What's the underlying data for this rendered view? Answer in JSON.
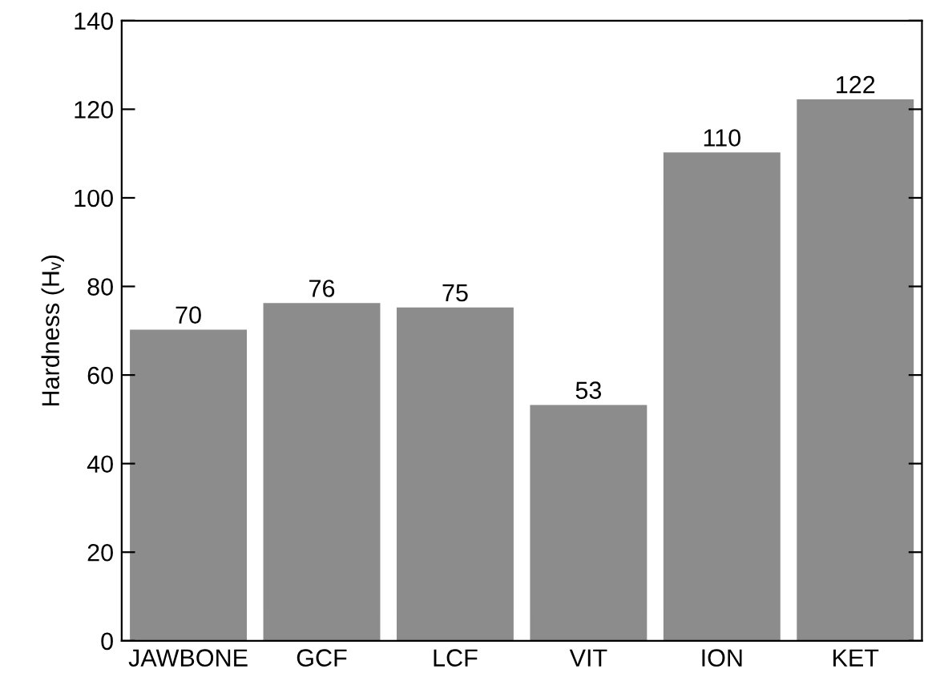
{
  "chart_data": {
    "type": "bar",
    "ylabel": "Hardness (Hᵥ)",
    "categories": [
      "JAWBONE",
      "GCF",
      "LCF",
      "VIT",
      "ION",
      "KET"
    ],
    "values": [
      70,
      76,
      75,
      53,
      110,
      122
    ],
    "color": "#8c8c8c",
    "ylim": [
      0,
      140
    ],
    "yticks": [
      0,
      20,
      40,
      60,
      80,
      100,
      120,
      140
    ],
    "data_labels": true,
    "grid": false,
    "legend": false
  }
}
